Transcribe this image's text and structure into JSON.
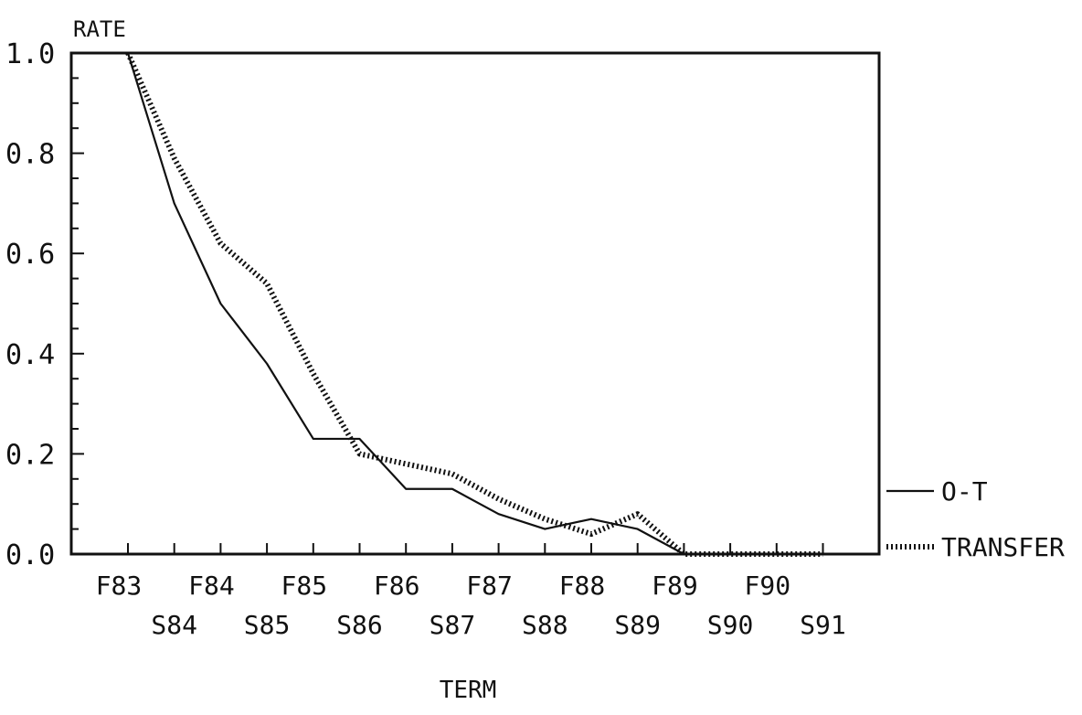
{
  "chart_data": {
    "type": "line",
    "ylabel": "RATE",
    "xlabel": "TERM",
    "ylim": [
      0.0,
      1.0
    ],
    "yticks": [
      "0.0",
      "0.2",
      "0.4",
      "0.6",
      "0.8",
      "1.0"
    ],
    "categories": [
      "F83",
      "S84",
      "F84",
      "S85",
      "F85",
      "S86",
      "F86",
      "S87",
      "F87",
      "S88",
      "F88",
      "S89",
      "F89",
      "S90",
      "F90",
      "S91"
    ],
    "series": [
      {
        "name": "O-T",
        "style": "solid",
        "values": [
          1.0,
          0.7,
          0.5,
          0.38,
          0.23,
          0.23,
          0.13,
          0.13,
          0.08,
          0.05,
          0.07,
          0.05,
          0.0,
          0.0,
          0.0,
          0.0
        ]
      },
      {
        "name": "TRANSFER",
        "style": "dotted",
        "values": [
          1.0,
          0.79,
          0.62,
          0.54,
          0.36,
          0.2,
          0.18,
          0.16,
          0.11,
          0.07,
          0.04,
          0.08,
          0.0,
          0.0,
          0.0,
          0.0
        ]
      }
    ],
    "grid": false,
    "legend_position": "right"
  },
  "colors": {
    "line": "#111111",
    "background": "#ffffff"
  }
}
